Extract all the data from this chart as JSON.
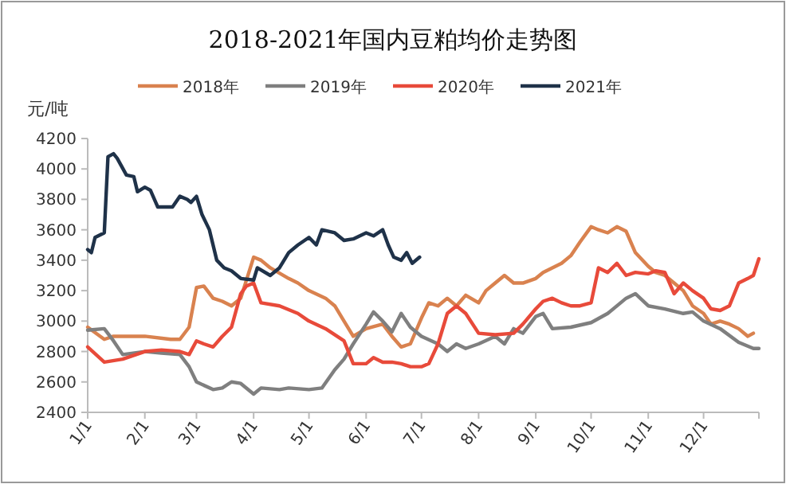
{
  "chart_data": {
    "type": "line",
    "title": "2018-2021年国内豆粕均价走势图",
    "ylabel": "元/吨",
    "legend": "top",
    "grid": false,
    "marker": "none",
    "line_style": "solid",
    "xlim": [
      "--01-01",
      "--12-31"
    ],
    "xticks": [
      {
        "value": "--01-01",
        "label": "1/1"
      },
      {
        "value": "--02-01",
        "label": "2/1"
      },
      {
        "value": "--03-01",
        "label": "3/1"
      },
      {
        "value": "--04-01",
        "label": "4/1"
      },
      {
        "value": "--05-01",
        "label": "5/1"
      },
      {
        "value": "--06-01",
        "label": "6/1"
      },
      {
        "value": "--07-01",
        "label": "7/1"
      },
      {
        "value": "--08-01",
        "label": "8/1"
      },
      {
        "value": "--09-01",
        "label": "9/1"
      },
      {
        "value": "--10-01",
        "label": "10/1"
      },
      {
        "value": "--11-01",
        "label": "11/1"
      },
      {
        "value": "--12-01",
        "label": "12/1"
      },
      {
        "value": "--12-31",
        "label": null
      }
    ],
    "ylim": [
      2400,
      4200
    ],
    "yticks": [
      2400,
      2600,
      2800,
      3000,
      3200,
      3400,
      3600,
      3800,
      4000,
      4200
    ],
    "series": [
      {
        "name": "2018年",
        "color": "#d9824f",
        "x": [
          "--01-01",
          "--01-10",
          "--01-15",
          "--02-01",
          "--02-15",
          "--02-20",
          "--02-25",
          "--03-01",
          "--03-05",
          "--03-10",
          "--03-15",
          "--03-20",
          "--03-25",
          "--04-01",
          "--04-05",
          "--04-10",
          "--04-20",
          "--04-25",
          "--05-01",
          "--05-10",
          "--05-15",
          "--05-20",
          "--05-25",
          "--06-01",
          "--06-10",
          "--06-15",
          "--06-20",
          "--06-25",
          "--07-01",
          "--07-05",
          "--07-10",
          "--07-15",
          "--07-20",
          "--07-25",
          "--08-01",
          "--08-05",
          "--08-10",
          "--08-15",
          "--08-20",
          "--08-25",
          "--09-01",
          "--09-05",
          "--09-10",
          "--09-15",
          "--09-20",
          "--09-25",
          "--10-01",
          "--10-05",
          "--10-10",
          "--10-15",
          "--10-20",
          "--10-25",
          "--11-01",
          "--11-05",
          "--11-10",
          "--11-15",
          "--11-20",
          "--11-25",
          "--12-01",
          "--12-05",
          "--12-10",
          "--12-15",
          "--12-20",
          "--12-25",
          "--12-28"
        ],
        "values": [
          2960,
          2880,
          2900,
          2900,
          2880,
          2880,
          2960,
          3220,
          3230,
          3150,
          3130,
          3100,
          3150,
          3420,
          3400,
          3350,
          3280,
          3250,
          3200,
          3150,
          3100,
          3000,
          2900,
          2950,
          2980,
          2900,
          2830,
          2850,
          3020,
          3120,
          3100,
          3150,
          3100,
          3170,
          3120,
          3200,
          3250,
          3300,
          3250,
          3250,
          3280,
          3320,
          3350,
          3380,
          3430,
          3520,
          3620,
          3600,
          3580,
          3620,
          3590,
          3450,
          3360,
          3320,
          3300,
          3250,
          3200,
          3100,
          3050,
          2980,
          3000,
          2980,
          2950,
          2900,
          2920
        ]
      },
      {
        "name": "2019年",
        "color": "#7f7f7f",
        "x": [
          "--01-01",
          "--01-10",
          "--01-15",
          "--01-20",
          "--02-01",
          "--02-10",
          "--02-20",
          "--02-25",
          "--03-01",
          "--03-10",
          "--03-15",
          "--03-20",
          "--03-25",
          "--04-01",
          "--04-05",
          "--04-15",
          "--04-20",
          "--05-01",
          "--05-08",
          "--05-15",
          "--05-20",
          "--05-25",
          "--06-01",
          "--06-05",
          "--06-10",
          "--06-15",
          "--06-20",
          "--06-25",
          "--07-01",
          "--07-10",
          "--07-15",
          "--07-20",
          "--07-25",
          "--08-01",
          "--08-10",
          "--08-15",
          "--08-20",
          "--08-25",
          "--09-01",
          "--09-05",
          "--09-10",
          "--09-20",
          "--10-01",
          "--10-10",
          "--10-20",
          "--10-25",
          "--11-01",
          "--11-10",
          "--11-20",
          "--11-25",
          "--12-01",
          "--12-10",
          "--12-20",
          "--12-28",
          "--12-31"
        ],
        "values": [
          2940,
          2950,
          2870,
          2780,
          2800,
          2790,
          2780,
          2700,
          2600,
          2550,
          2560,
          2600,
          2590,
          2520,
          2560,
          2550,
          2560,
          2550,
          2560,
          2680,
          2750,
          2850,
          2980,
          3060,
          3000,
          2930,
          3050,
          2960,
          2900,
          2850,
          2800,
          2850,
          2820,
          2850,
          2900,
          2850,
          2950,
          2920,
          3030,
          3050,
          2950,
          2960,
          2990,
          3050,
          3150,
          3180,
          3100,
          3080,
          3050,
          3060,
          3000,
          2950,
          2860,
          2820,
          2820
        ]
      },
      {
        "name": "2020年",
        "color": "#e84a3a",
        "x": [
          "--01-01",
          "--01-10",
          "--01-20",
          "--02-01",
          "--02-10",
          "--02-20",
          "--02-25",
          "--03-01",
          "--03-05",
          "--03-10",
          "--03-15",
          "--03-20",
          "--03-25",
          "--03-28",
          "--04-01",
          "--04-05",
          "--04-15",
          "--04-25",
          "--05-01",
          "--05-10",
          "--05-20",
          "--05-25",
          "--06-01",
          "--06-05",
          "--06-10",
          "--06-15",
          "--06-20",
          "--06-25",
          "--07-01",
          "--07-05",
          "--07-10",
          "--07-15",
          "--07-20",
          "--07-25",
          "--08-01",
          "--08-10",
          "--08-20",
          "--08-25",
          "--09-01",
          "--09-05",
          "--09-10",
          "--09-15",
          "--09-20",
          "--09-25",
          "--10-01",
          "--10-05",
          "--10-10",
          "--10-15",
          "--10-20",
          "--10-25",
          "--11-01",
          "--11-05",
          "--11-10",
          "--11-15",
          "--11-20",
          "--11-25",
          "--12-01",
          "--12-05",
          "--12-10",
          "--12-15",
          "--12-20",
          "--12-25",
          "--12-28",
          "--12-31"
        ],
        "values": [
          2830,
          2730,
          2750,
          2800,
          2810,
          2800,
          2780,
          2870,
          2850,
          2830,
          2900,
          2960,
          3180,
          3230,
          3250,
          3120,
          3100,
          3050,
          3000,
          2950,
          2870,
          2720,
          2720,
          2760,
          2730,
          2730,
          2720,
          2700,
          2700,
          2720,
          2850,
          3050,
          3100,
          3050,
          2920,
          2910,
          2920,
          2980,
          3080,
          3130,
          3150,
          3120,
          3100,
          3100,
          3120,
          3350,
          3320,
          3380,
          3300,
          3320,
          3310,
          3330,
          3320,
          3180,
          3250,
          3200,
          3150,
          3080,
          3070,
          3100,
          3250,
          3280,
          3300,
          3410
        ]
      },
      {
        "name": "2021年",
        "color": "#1f3249",
        "x": [
          "--01-01",
          "--01-03",
          "--01-05",
          "--01-10",
          "--01-12",
          "--01-15",
          "--01-17",
          "--01-22",
          "--01-26",
          "--01-28",
          "--02-01",
          "--02-04",
          "--02-08",
          "--02-12",
          "--02-16",
          "--02-20",
          "--02-24",
          "--02-26",
          "--03-01",
          "--03-04",
          "--03-08",
          "--03-12",
          "--03-16",
          "--03-20",
          "--03-25",
          "--04-01",
          "--04-03",
          "--04-10",
          "--04-15",
          "--04-20",
          "--04-25",
          "--05-01",
          "--05-05",
          "--05-08",
          "--05-15",
          "--05-20",
          "--05-25",
          "--06-01",
          "--06-05",
          "--06-10",
          "--06-13",
          "--06-16",
          "--06-20",
          "--06-23",
          "--06-26",
          "--06-30"
        ],
        "values": [
          3470,
          3450,
          3550,
          3580,
          4080,
          4100,
          4070,
          3960,
          3950,
          3850,
          3880,
          3860,
          3750,
          3750,
          3750,
          3820,
          3800,
          3780,
          3820,
          3700,
          3600,
          3400,
          3350,
          3330,
          3280,
          3270,
          3350,
          3300,
          3350,
          3450,
          3500,
          3550,
          3500,
          3600,
          3580,
          3530,
          3540,
          3580,
          3560,
          3600,
          3500,
          3420,
          3400,
          3450,
          3380,
          3420
        ]
      }
    ]
  }
}
